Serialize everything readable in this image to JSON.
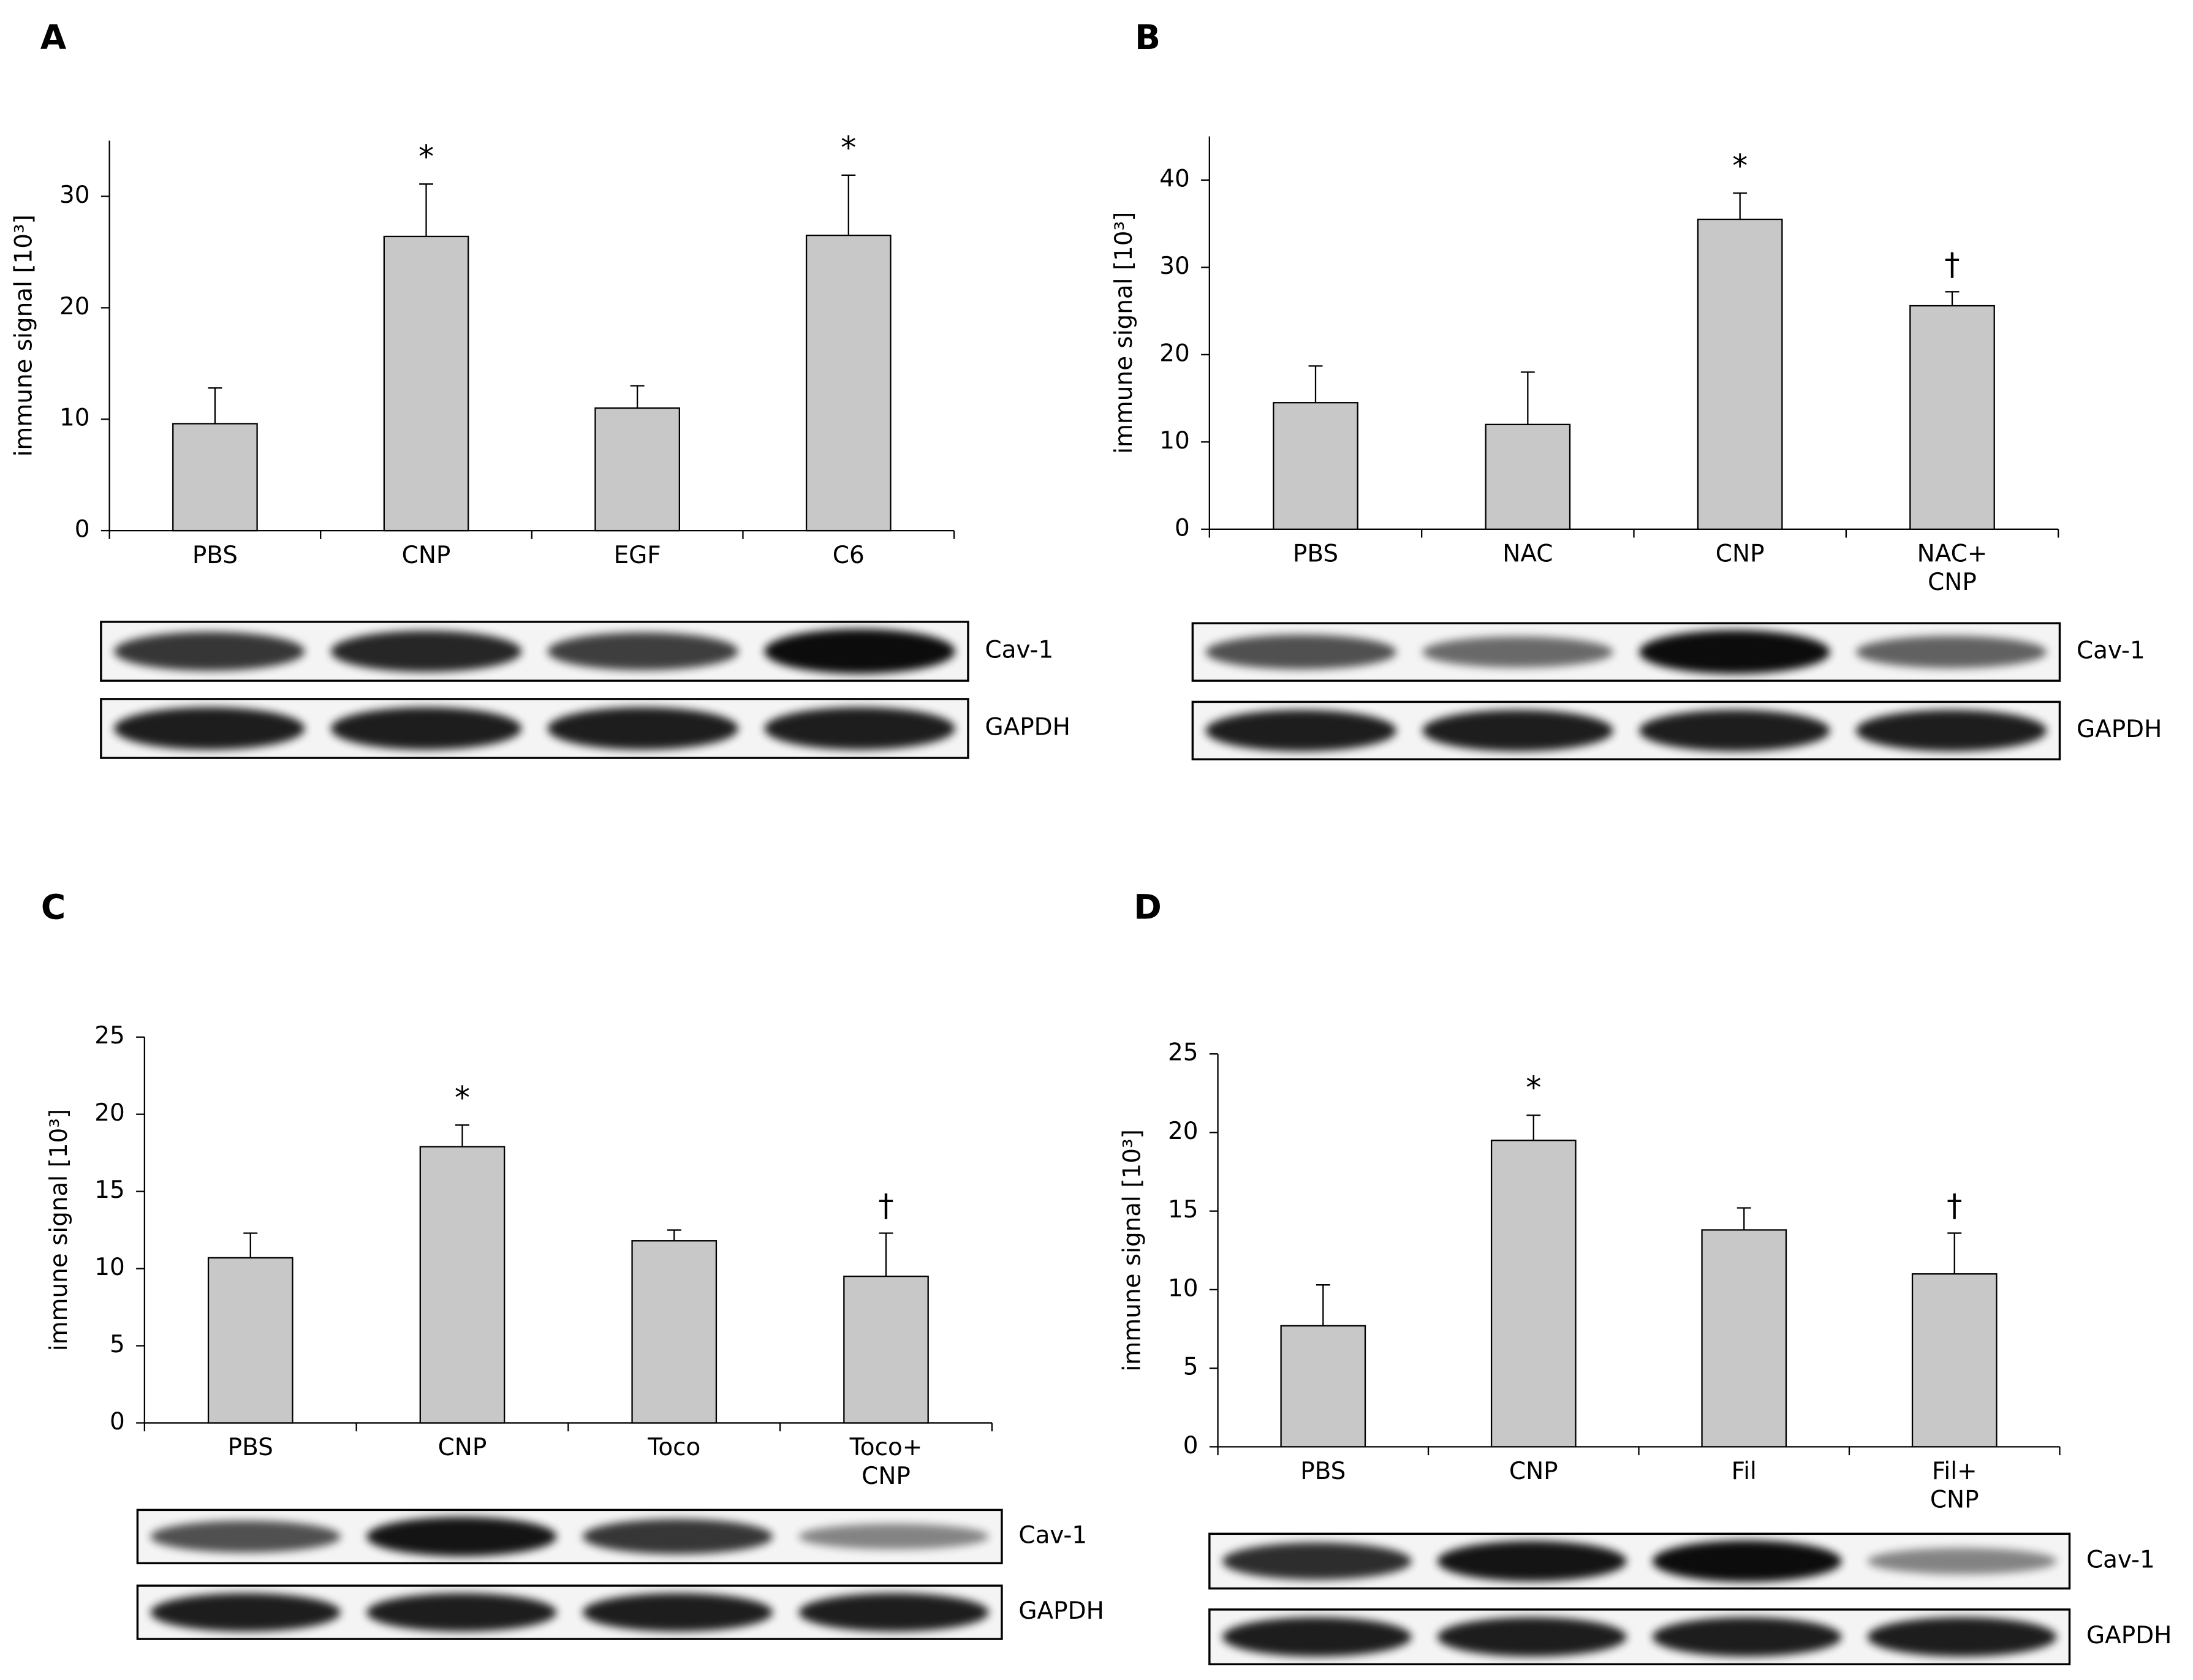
{
  "chart_data": [
    {
      "type": "bar",
      "title": "A",
      "ylabel": "immune signal [10³]",
      "categories": [
        "PBS",
        "CNP",
        "EGF",
        "C6"
      ],
      "values": [
        9.6,
        26.4,
        11.0,
        26.5
      ],
      "errors": [
        3.2,
        4.7,
        2.0,
        5.4
      ],
      "markers": [
        null,
        "*",
        null,
        "*"
      ],
      "ylim": [
        0,
        35
      ],
      "yticks": [
        0,
        10,
        20,
        30
      ],
      "color": "#c8c8c8",
      "blot_labels": [
        "Cav-1",
        "GAPDH"
      ]
    },
    {
      "type": "bar",
      "title": "B",
      "ylabel": "immune signal [10³]",
      "categories": [
        "PBS",
        "NAC",
        "CNP",
        "NAC+\nCNP"
      ],
      "values": [
        14.5,
        12.0,
        35.5,
        25.6
      ],
      "errors": [
        4.2,
        6.0,
        3.0,
        1.6
      ],
      "markers": [
        null,
        null,
        "*",
        "†"
      ],
      "ylim": [
        0,
        45
      ],
      "yticks": [
        0,
        10,
        20,
        30,
        40
      ],
      "color": "#c8c8c8",
      "blot_labels": [
        "Cav-1",
        "GAPDH"
      ]
    },
    {
      "type": "bar",
      "title": "C",
      "ylabel": "immune signal [10³]",
      "categories": [
        "PBS",
        "CNP",
        "Toco",
        "Toco+\nCNP"
      ],
      "values": [
        10.7,
        17.9,
        11.8,
        9.5
      ],
      "errors": [
        1.6,
        1.4,
        0.7,
        2.8
      ],
      "markers": [
        null,
        "*",
        null,
        "†"
      ],
      "ylim": [
        0,
        25
      ],
      "yticks": [
        0,
        5,
        10,
        15,
        20,
        25
      ],
      "color": "#c8c8c8",
      "blot_labels": [
        "Cav-1",
        "GAPDH"
      ]
    },
    {
      "type": "bar",
      "title": "D",
      "ylabel": "immune signal [10³]",
      "categories": [
        "PBS",
        "CNP",
        "Fil",
        "Fil+\nCNP"
      ],
      "values": [
        7.7,
        19.5,
        13.8,
        11.0
      ],
      "errors": [
        2.6,
        1.6,
        1.4,
        2.6
      ],
      "markers": [
        null,
        "*",
        null,
        "†"
      ],
      "ylim": [
        0,
        25
      ],
      "yticks": [
        0,
        5,
        10,
        15,
        20,
        25
      ],
      "color": "#c8c8c8",
      "blot_labels": [
        "Cav-1",
        "GAPDH"
      ]
    }
  ]
}
